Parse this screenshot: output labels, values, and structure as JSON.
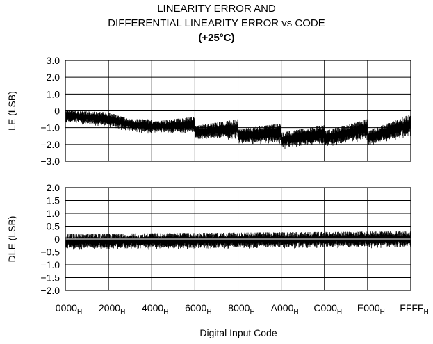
{
  "chart_data": {
    "title": [
      "LINEARITY ERROR AND",
      "DIFFERENTIAL LINEARITY ERROR vs CODE",
      "(+25°C)"
    ],
    "xlabel": "Digital Input Code",
    "x_ticks": [
      {
        "base": "0000",
        "sub": "H"
      },
      {
        "base": "2000",
        "sub": "H"
      },
      {
        "base": "4000",
        "sub": "H"
      },
      {
        "base": "6000",
        "sub": "H"
      },
      {
        "base": "8000",
        "sub": "H"
      },
      {
        "base": "A000",
        "sub": "H"
      },
      {
        "base": "C000",
        "sub": "H"
      },
      {
        "base": "E000",
        "sub": "H"
      },
      {
        "base": "FFFF",
        "sub": "H"
      }
    ],
    "xlim": [
      0,
      65535
    ],
    "grid": true,
    "panels": [
      {
        "type": "line",
        "ylabel": "LE (LSB)",
        "ylim": [
          -3.0,
          3.0
        ],
        "y_ticks": [
          "3.0",
          "2.0",
          "1.0",
          "0",
          "−1.0",
          "−2.0",
          "−3.0"
        ],
        "series_color": "#000000",
        "envelope": [
          {
            "x": 0,
            "low": -0.7,
            "high": 0.05
          },
          {
            "x": 8192,
            "low": -1.0,
            "high": -0.1
          },
          {
            "x": 12288,
            "low": -1.25,
            "high": -0.5
          },
          {
            "x": 16383,
            "low": -1.4,
            "high": -0.5
          },
          {
            "x": 16384,
            "low": -1.3,
            "high": -0.65
          },
          {
            "x": 24575,
            "low": -1.45,
            "high": -0.35
          },
          {
            "x": 24576,
            "low": -1.75,
            "high": -0.9
          },
          {
            "x": 32767,
            "low": -1.75,
            "high": -0.5
          },
          {
            "x": 32768,
            "low": -2.0,
            "high": -1.1
          },
          {
            "x": 40959,
            "low": -2.0,
            "high": -0.75
          },
          {
            "x": 40960,
            "low": -2.3,
            "high": -1.3
          },
          {
            "x": 49151,
            "low": -2.05,
            "high": -0.85
          },
          {
            "x": 49152,
            "low": -2.2,
            "high": -1.2
          },
          {
            "x": 57343,
            "low": -1.8,
            "high": -0.5
          },
          {
            "x": 57344,
            "low": -2.1,
            "high": -1.2
          },
          {
            "x": 65535,
            "low": -1.6,
            "high": -0.2
          }
        ]
      },
      {
        "type": "line",
        "ylabel": "DLE (LSB)",
        "ylim": [
          -2.0,
          2.0
        ],
        "y_ticks": [
          "2.0",
          "1.5",
          "1.0",
          "0.5",
          "0",
          "−0.5",
          "−1.0",
          "−1.5",
          "−2.0"
        ],
        "series_color": "#000000",
        "envelope": [
          {
            "x": 0,
            "low": -0.45,
            "high": 0.2
          },
          {
            "x": 32768,
            "low": -0.4,
            "high": 0.25
          },
          {
            "x": 65535,
            "low": -0.35,
            "high": 0.3
          }
        ]
      }
    ]
  }
}
